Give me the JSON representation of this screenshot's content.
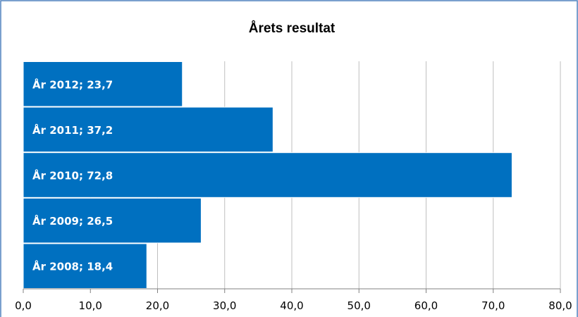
{
  "chart_data": {
    "type": "bar",
    "orientation": "horizontal",
    "title": "Årets resultat",
    "categories": [
      "År 2012",
      "År 2011",
      "År 2010",
      "År 2009",
      "År 2008"
    ],
    "values": [
      23.7,
      37.2,
      72.8,
      26.5,
      18.4
    ],
    "data_labels": [
      "År 2012; 23,7",
      "År 2011; 37,2",
      "År 2010; 72,8",
      "År 2009; 26,5",
      "År 2008; 18,4"
    ],
    "xlim": [
      0,
      80
    ],
    "x_ticks": [
      0,
      10,
      20,
      30,
      40,
      50,
      60,
      70,
      80
    ],
    "x_tick_labels": [
      "0,0",
      "10,0",
      "20,0",
      "30,0",
      "40,0",
      "50,0",
      "60,0",
      "70,0",
      "80,0"
    ],
    "grid": "vertical",
    "legend": "none",
    "xlabel": "",
    "ylabel": "",
    "colors": {
      "bar": "#0070C0",
      "bar_edge": "#ffffff",
      "grid": "#bfbfbf",
      "axis": "#808080",
      "frame": "#4F81BD"
    }
  }
}
